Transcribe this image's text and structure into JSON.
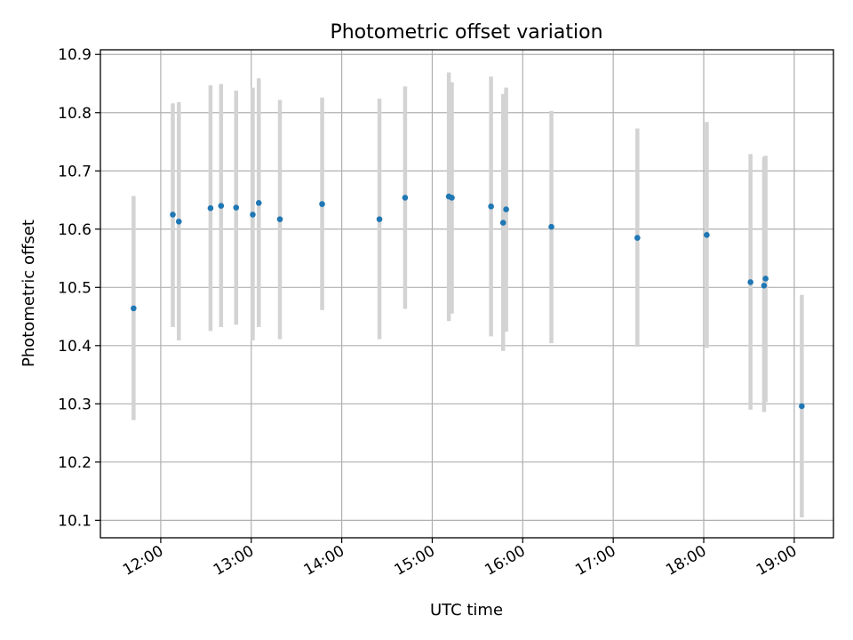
{
  "chart_data": {
    "type": "scatter",
    "title": "Photometric offset variation",
    "xlabel": "UTC time",
    "ylabel": "Photometric offset",
    "x_ticks": [
      "12:00",
      "13:00",
      "14:00",
      "15:00",
      "16:00",
      "17:00",
      "18:00",
      "19:00"
    ],
    "y_ticks": [
      "10.1",
      "10.2",
      "10.3",
      "10.4",
      "10.5",
      "10.6",
      "10.7",
      "10.8",
      "10.9"
    ],
    "xlim": [
      "11:20",
      "19:26"
    ],
    "ylim": [
      10.07,
      10.908
    ],
    "grid": true,
    "series": [
      {
        "marker_color": "#1f77b4",
        "errorbar_color": "#d3d3d3",
        "points": [
          {
            "x": "11:42",
            "y": 10.464,
            "ylow": 10.272,
            "yhigh": 10.657
          },
          {
            "x": "12:08",
            "y": 10.625,
            "ylow": 10.432,
            "yhigh": 10.816
          },
          {
            "x": "12:12",
            "y": 10.613,
            "ylow": 10.409,
            "yhigh": 10.818
          },
          {
            "x": "12:33",
            "y": 10.636,
            "ylow": 10.425,
            "yhigh": 10.847
          },
          {
            "x": "12:40",
            "y": 10.64,
            "ylow": 10.432,
            "yhigh": 10.849
          },
          {
            "x": "12:50",
            "y": 10.637,
            "ylow": 10.436,
            "yhigh": 10.838
          },
          {
            "x": "13:01",
            "y": 10.625,
            "ylow": 10.409,
            "yhigh": 10.843
          },
          {
            "x": "13:05",
            "y": 10.645,
            "ylow": 10.432,
            "yhigh": 10.859
          },
          {
            "x": "13:19",
            "y": 10.617,
            "ylow": 10.411,
            "yhigh": 10.822
          },
          {
            "x": "13:47",
            "y": 10.643,
            "ylow": 10.461,
            "yhigh": 10.826
          },
          {
            "x": "14:25",
            "y": 10.617,
            "ylow": 10.411,
            "yhigh": 10.824
          },
          {
            "x": "14:42",
            "y": 10.654,
            "ylow": 10.463,
            "yhigh": 10.845
          },
          {
            "x": "15:11",
            "y": 10.656,
            "ylow": 10.442,
            "yhigh": 10.869
          },
          {
            "x": "15:13",
            "y": 10.654,
            "ylow": 10.455,
            "yhigh": 10.852
          },
          {
            "x": "15:39",
            "y": 10.639,
            "ylow": 10.416,
            "yhigh": 10.862
          },
          {
            "x": "15:47",
            "y": 10.611,
            "ylow": 10.391,
            "yhigh": 10.832
          },
          {
            "x": "15:49",
            "y": 10.634,
            "ylow": 10.424,
            "yhigh": 10.843
          },
          {
            "x": "16:19",
            "y": 10.604,
            "ylow": 10.404,
            "yhigh": 10.803
          },
          {
            "x": "17:16",
            "y": 10.585,
            "ylow": 10.398,
            "yhigh": 10.773
          },
          {
            "x": "18:02",
            "y": 10.59,
            "ylow": 10.396,
            "yhigh": 10.784
          },
          {
            "x": "18:31",
            "y": 10.509,
            "ylow": 10.29,
            "yhigh": 10.729
          },
          {
            "x": "18:40",
            "y": 10.503,
            "ylow": 10.286,
            "yhigh": 10.724
          },
          {
            "x": "18:41",
            "y": 10.515,
            "ylow": 10.303,
            "yhigh": 10.726
          },
          {
            "x": "19:05",
            "y": 10.296,
            "ylow": 10.105,
            "yhigh": 10.487
          }
        ]
      }
    ]
  }
}
